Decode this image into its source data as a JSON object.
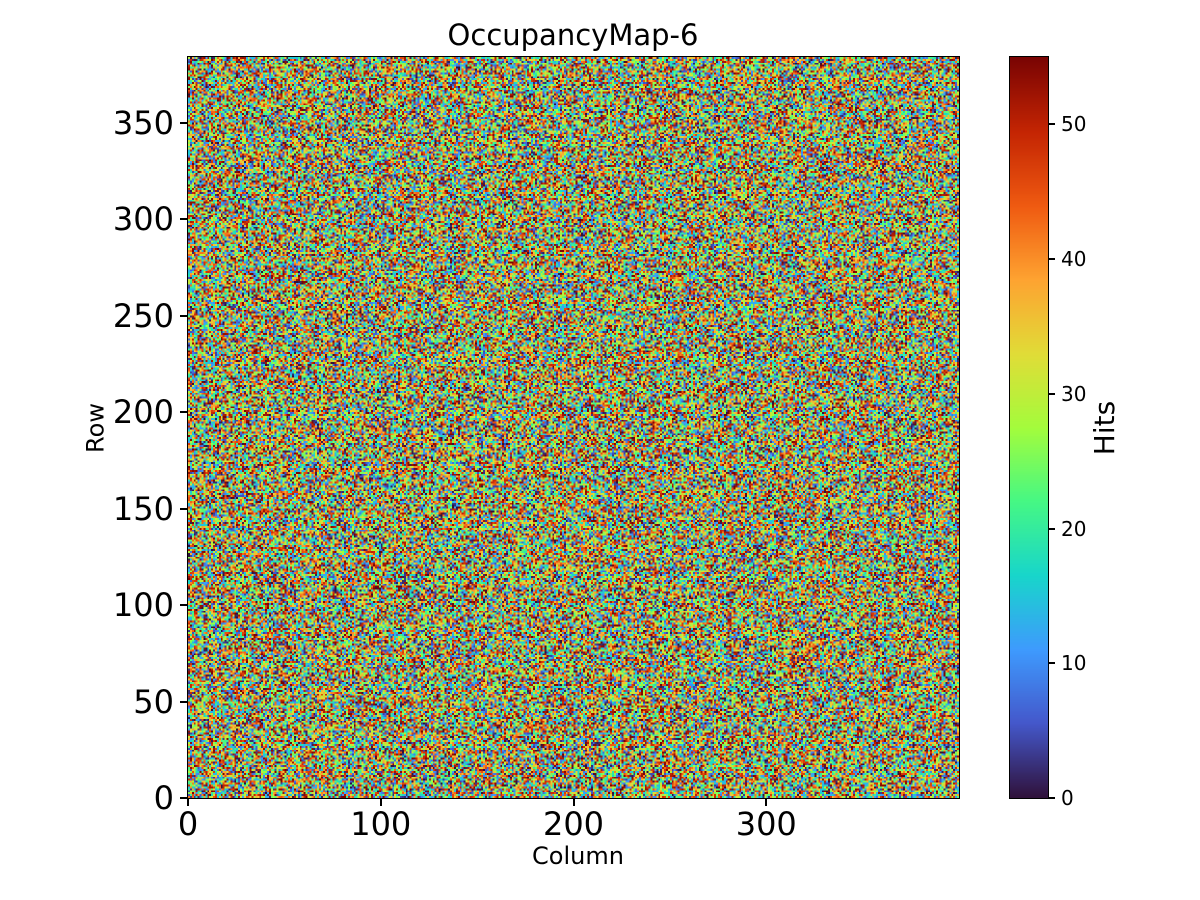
{
  "figure": {
    "background_color": "#ffffff",
    "text_color": "#000000",
    "spine_color": "#000000"
  },
  "chart_data": {
    "type": "heatmap",
    "title": "OccupancyMap-6",
    "xlabel": "Column",
    "ylabel": "Row",
    "colorbar_label": "Hits",
    "cols": 400,
    "rows": 384,
    "xlim": [
      0,
      400
    ],
    "ylim": [
      0,
      384
    ],
    "xticks": [
      0,
      100,
      200,
      300
    ],
    "yticks": [
      0,
      50,
      100,
      150,
      200,
      250,
      300,
      350
    ],
    "colorbar_ticks": [
      0,
      10,
      20,
      30,
      40,
      50
    ],
    "vmin": 0,
    "vmax": 55,
    "colormap": "turbo",
    "colormap_stops": [
      "#30123b",
      "#4458cb",
      "#3e9bfe",
      "#18d6cb",
      "#46f884",
      "#a4fc3c",
      "#e1dc37",
      "#fea331",
      "#ef5a11",
      "#c42503",
      "#7a0403"
    ],
    "values_description": "400x384 per-pixel hit counts rendered as dense uniform random noise spanning the full 0-55 color range",
    "grid": false,
    "legend": false
  }
}
